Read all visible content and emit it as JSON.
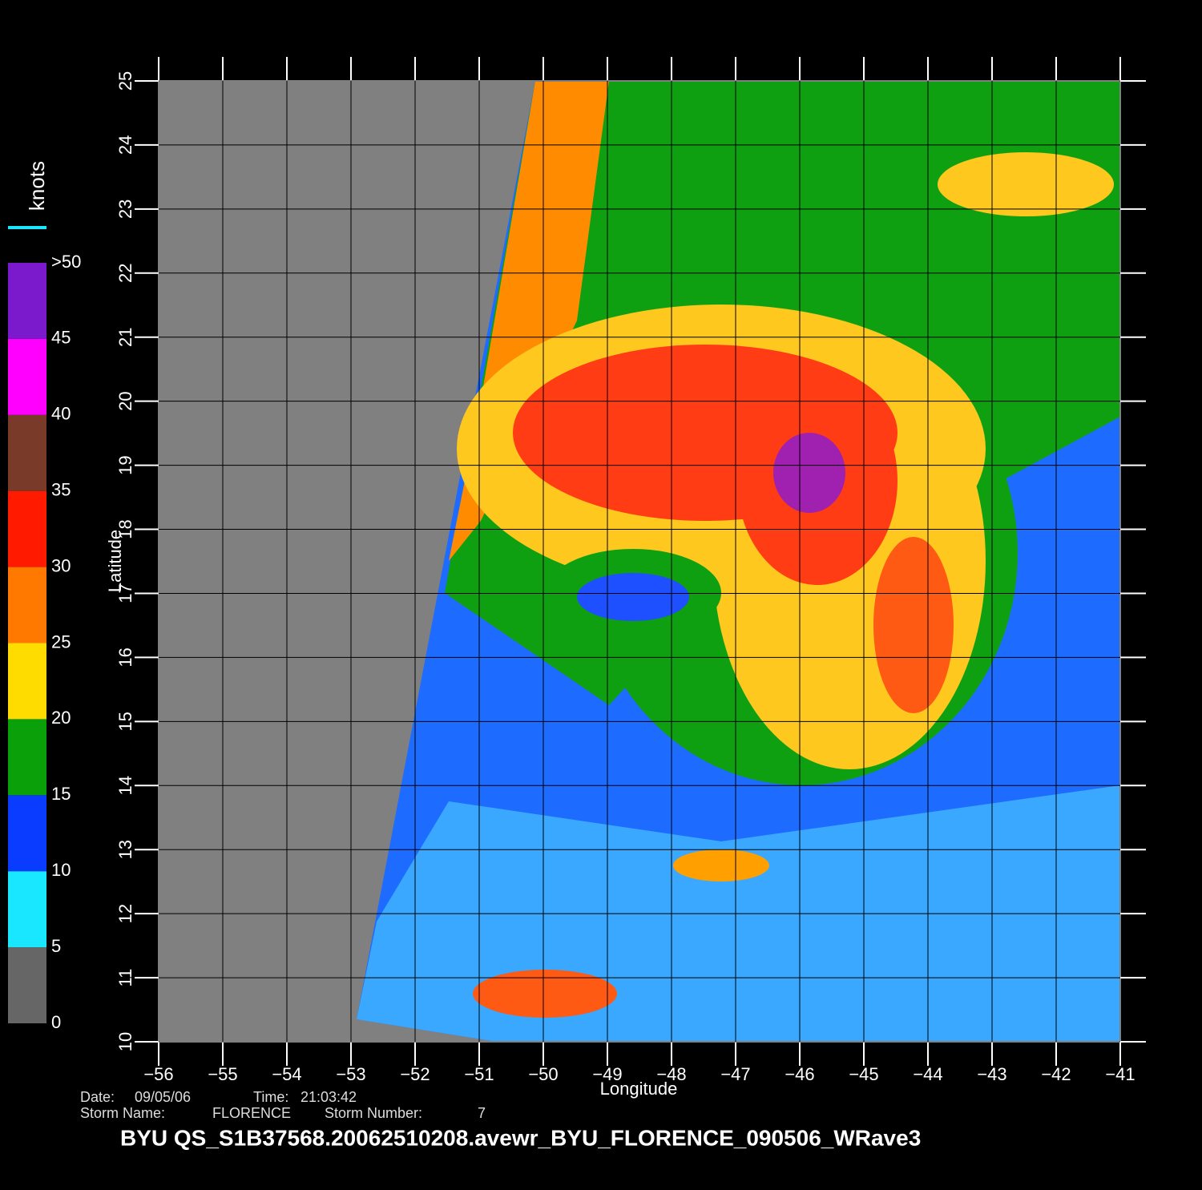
{
  "map": {
    "xlim": [
      -56,
      -41
    ],
    "ylim": [
      10,
      25
    ],
    "xticks": [
      {
        "value": -56,
        "label": "−56"
      },
      {
        "value": -55,
        "label": "−55"
      },
      {
        "value": -54,
        "label": "−54"
      },
      {
        "value": -53,
        "label": "−53"
      },
      {
        "value": -52,
        "label": "−52"
      },
      {
        "value": -51,
        "label": "−51"
      },
      {
        "value": -50,
        "label": "−50"
      },
      {
        "value": -49,
        "label": "−49"
      },
      {
        "value": -48,
        "label": "−48"
      },
      {
        "value": -47,
        "label": "−47"
      },
      {
        "value": -46,
        "label": "−46"
      },
      {
        "value": -45,
        "label": "−45"
      },
      {
        "value": -44,
        "label": "−44"
      },
      {
        "value": -43,
        "label": "−43"
      },
      {
        "value": -42,
        "label": "−42"
      },
      {
        "value": -41,
        "label": "−41"
      }
    ],
    "yticks": [
      10,
      11,
      12,
      13,
      14,
      15,
      16,
      17,
      18,
      19,
      20,
      21,
      22,
      23,
      24,
      25
    ],
    "xlabel": "Longitude",
    "ylabel": "Latitude",
    "grid": true
  },
  "colorbar": {
    "title": "knots",
    "lim": [
      0,
      52
    ],
    "ticks": [
      0,
      5,
      10,
      15,
      20,
      25,
      30,
      35,
      40,
      45,
      {
        "value": 50,
        "label": ">50"
      }
    ],
    "colors": [
      "#666666",
      "#19e6ff",
      "#0a3cff",
      "#0aa00a",
      "#ffdc00",
      "#ff7800",
      "#ff1a00",
      "#7a3a2a",
      "#ff00ff",
      "#7a1acc"
    ]
  },
  "footer": {
    "date_label": "Date:",
    "date": "09/05/06",
    "time_label": "Time:",
    "time": "21:03:42",
    "storm_name_label": "Storm  Name:",
    "storm_name": "FLORENCE",
    "storm_number_label": "Storm  Number:",
    "storm_number": "7",
    "title": "BYU  QS_S1B37568.20062510208.avewr_BYU_FLORENCE_090506_WRave3"
  }
}
